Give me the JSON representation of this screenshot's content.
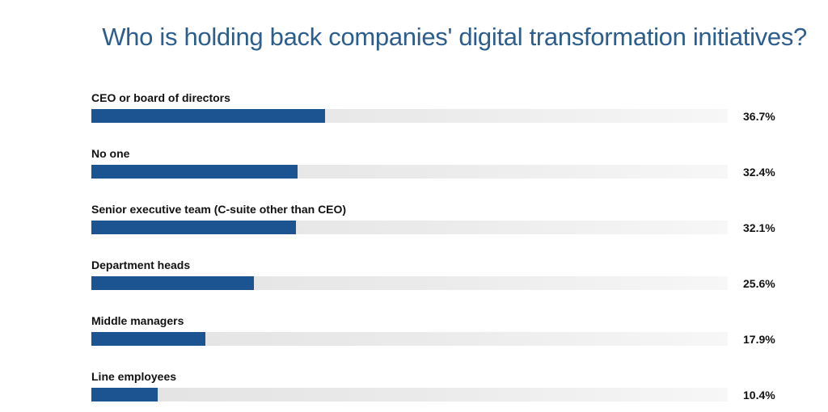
{
  "chart_data": {
    "type": "bar",
    "orientation": "horizontal",
    "title": "Who is holding back companies' digital transformation initiatives?",
    "categories": [
      "CEO or board of directors",
      "No one",
      "Senior executive team (C-suite other than CEO)",
      "Department heads",
      "Middle managers",
      "Line employees"
    ],
    "values": [
      36.7,
      32.4,
      32.1,
      25.6,
      17.9,
      10.4
    ],
    "value_labels": [
      "36.7%",
      "32.4%",
      "32.1%",
      "25.6%",
      "17.9%",
      "10.4%"
    ],
    "xlim": [
      0,
      100
    ],
    "unit": "%",
    "xlabel": "",
    "ylabel": "",
    "grid": false,
    "legend": "none"
  },
  "colors": {
    "bar_fill": "#1c5491",
    "bar_track": "#e6e6e6",
    "title": "#2b5d8e",
    "text": "#111111"
  }
}
